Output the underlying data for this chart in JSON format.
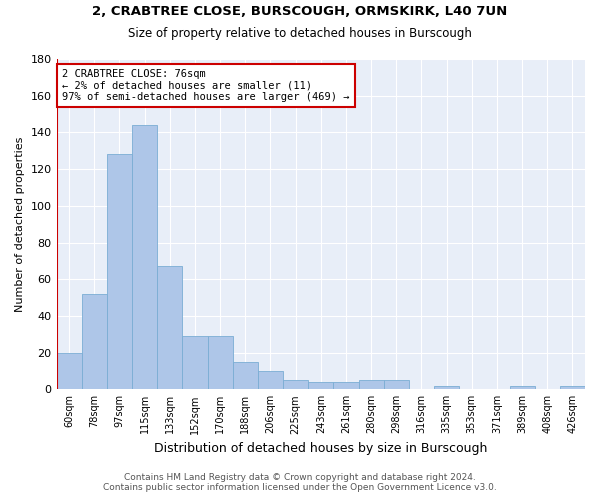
{
  "title_line1": "2, CRABTREE CLOSE, BURSCOUGH, ORMSKIRK, L40 7UN",
  "title_line2": "Size of property relative to detached houses in Burscough",
  "xlabel": "Distribution of detached houses by size in Burscough",
  "ylabel": "Number of detached properties",
  "categories": [
    "60sqm",
    "78sqm",
    "97sqm",
    "115sqm",
    "133sqm",
    "152sqm",
    "170sqm",
    "188sqm",
    "206sqm",
    "225sqm",
    "243sqm",
    "261sqm",
    "280sqm",
    "298sqm",
    "316sqm",
    "335sqm",
    "353sqm",
    "371sqm",
    "389sqm",
    "408sqm",
    "426sqm"
  ],
  "values": [
    20,
    52,
    128,
    144,
    67,
    29,
    29,
    15,
    10,
    5,
    4,
    4,
    5,
    5,
    0,
    2,
    0,
    0,
    2,
    0,
    2
  ],
  "bar_color": "#aec6e8",
  "bar_edge_color": "#7aadd4",
  "vline_color": "#cc0000",
  "annotation_text": "2 CRABTREE CLOSE: 76sqm\n← 2% of detached houses are smaller (11)\n97% of semi-detached houses are larger (469) →",
  "annotation_box_color": "#ffffff",
  "annotation_box_edge": "#cc0000",
  "ylim": [
    0,
    180
  ],
  "yticks": [
    0,
    20,
    40,
    60,
    80,
    100,
    120,
    140,
    160,
    180
  ],
  "figure_bg": "#ffffff",
  "plot_bg": "#e8eef8",
  "grid_color": "#ffffff",
  "footer_line1": "Contains HM Land Registry data © Crown copyright and database right 2024.",
  "footer_line2": "Contains public sector information licensed under the Open Government Licence v3.0.",
  "title1_fontsize": 9.5,
  "title2_fontsize": 8.5,
  "ylabel_fontsize": 8,
  "xlabel_fontsize": 9,
  "tick_fontsize": 7,
  "footer_fontsize": 6.5
}
